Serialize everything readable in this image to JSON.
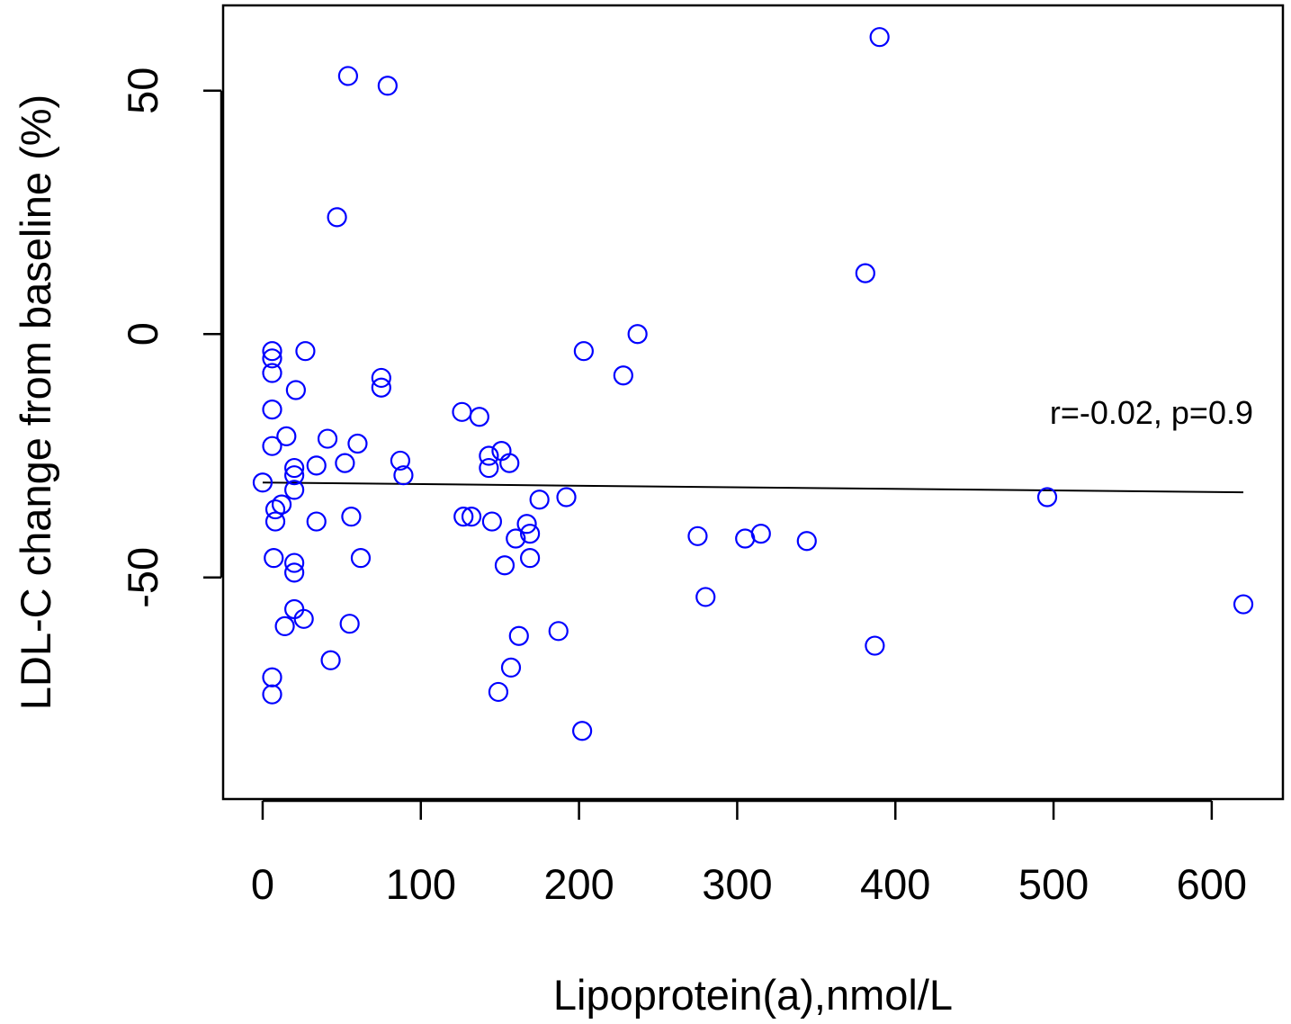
{
  "chart_data": {
    "type": "scatter",
    "xlabel": "Lipoprotein(a),nmol/L",
    "ylabel": "LDL-C change from baseline (%)",
    "annotation": "r=-0.02,  p=0.9",
    "x_ticks": [
      0,
      100,
      200,
      300,
      400,
      500,
      600
    ],
    "y_ticks": [
      -50,
      0,
      50
    ],
    "xlim": [
      -25,
      645
    ],
    "ylim": [
      -95.5,
      67.5
    ],
    "grid": false,
    "point_color": "#0000ff",
    "line_color": "#000000",
    "regression_line": {
      "x": [
        0,
        620
      ],
      "y": [
        -30.5,
        -32.5
      ]
    },
    "points": [
      {
        "x": 0,
        "y": -30.5
      },
      {
        "x": 6,
        "y": -3.5
      },
      {
        "x": 6,
        "y": -5
      },
      {
        "x": 6,
        "y": -8
      },
      {
        "x": 6,
        "y": -15.5
      },
      {
        "x": 6,
        "y": -23
      },
      {
        "x": 7,
        "y": -46
      },
      {
        "x": 6,
        "y": -70.5
      },
      {
        "x": 6,
        "y": -74
      },
      {
        "x": 8,
        "y": -36
      },
      {
        "x": 8,
        "y": -38.5
      },
      {
        "x": 12,
        "y": -35
      },
      {
        "x": 14,
        "y": -60
      },
      {
        "x": 15,
        "y": -21
      },
      {
        "x": 20,
        "y": -27.5
      },
      {
        "x": 20,
        "y": -29
      },
      {
        "x": 20,
        "y": -32
      },
      {
        "x": 20,
        "y": -47
      },
      {
        "x": 20,
        "y": -49
      },
      {
        "x": 20,
        "y": -56.5
      },
      {
        "x": 21,
        "y": -11.5
      },
      {
        "x": 27,
        "y": -3.5
      },
      {
        "x": 26,
        "y": -58.5
      },
      {
        "x": 34,
        "y": -27
      },
      {
        "x": 34,
        "y": -38.5
      },
      {
        "x": 41,
        "y": -21.5
      },
      {
        "x": 43,
        "y": -67
      },
      {
        "x": 47,
        "y": 24
      },
      {
        "x": 52,
        "y": -26.5
      },
      {
        "x": 54,
        "y": 53
      },
      {
        "x": 55,
        "y": -59.5
      },
      {
        "x": 56,
        "y": -37.5
      },
      {
        "x": 60,
        "y": -22.5
      },
      {
        "x": 62,
        "y": -46
      },
      {
        "x": 75,
        "y": -9
      },
      {
        "x": 75,
        "y": -11
      },
      {
        "x": 79,
        "y": 51
      },
      {
        "x": 87,
        "y": -26
      },
      {
        "x": 89,
        "y": -29
      },
      {
        "x": 126,
        "y": -16
      },
      {
        "x": 127,
        "y": -37.5
      },
      {
        "x": 132,
        "y": -37.5
      },
      {
        "x": 137,
        "y": -17
      },
      {
        "x": 143,
        "y": -25
      },
      {
        "x": 143,
        "y": -27.5
      },
      {
        "x": 145,
        "y": -38.5
      },
      {
        "x": 149,
        "y": -73.5
      },
      {
        "x": 151,
        "y": -24
      },
      {
        "x": 153,
        "y": -47.5
      },
      {
        "x": 156,
        "y": -26.5
      },
      {
        "x": 157,
        "y": -68.5
      },
      {
        "x": 160,
        "y": -42
      },
      {
        "x": 162,
        "y": -62
      },
      {
        "x": 167,
        "y": -39
      },
      {
        "x": 169,
        "y": -41
      },
      {
        "x": 169,
        "y": -46
      },
      {
        "x": 175,
        "y": -34
      },
      {
        "x": 187,
        "y": -61
      },
      {
        "x": 192,
        "y": -33.5
      },
      {
        "x": 202,
        "y": -81.5
      },
      {
        "x": 203,
        "y": -3.5
      },
      {
        "x": 228,
        "y": -8.5
      },
      {
        "x": 237,
        "y": 0
      },
      {
        "x": 275,
        "y": -41.5
      },
      {
        "x": 280,
        "y": -54
      },
      {
        "x": 305,
        "y": -42
      },
      {
        "x": 315,
        "y": -41
      },
      {
        "x": 344,
        "y": -42.5
      },
      {
        "x": 381,
        "y": 12.5
      },
      {
        "x": 387,
        "y": -64
      },
      {
        "x": 390,
        "y": 61
      },
      {
        "x": 496,
        "y": -33.5
      },
      {
        "x": 620,
        "y": -55.5
      }
    ]
  }
}
